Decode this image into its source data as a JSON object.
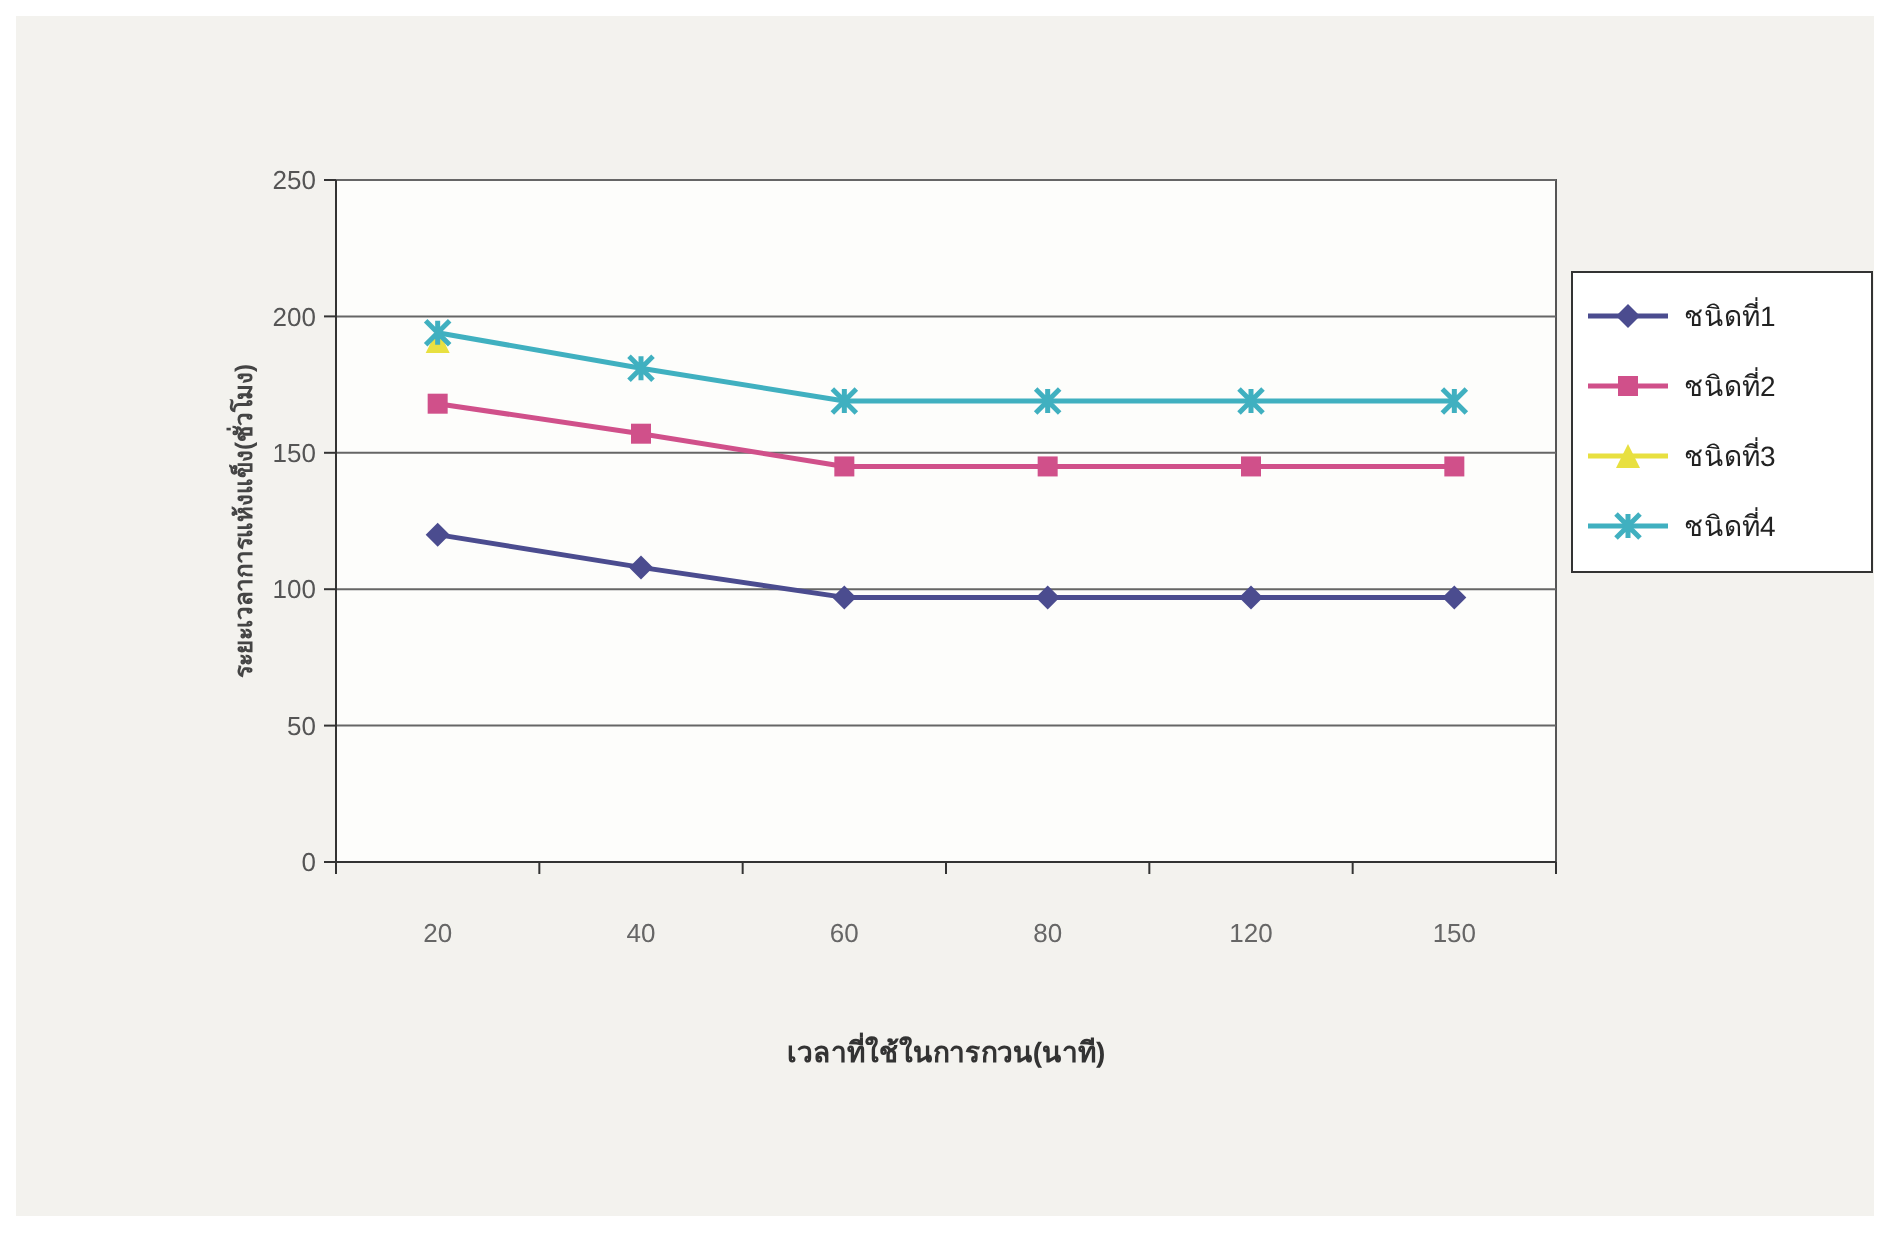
{
  "chart_data": {
    "type": "line",
    "xlabel": "เวลาที่ใช้ในการกวน(นาที)",
    "ylabel": "ระยะเวลาการแห้งแข็ง(ชั่วโมง)",
    "categories": [
      "20",
      "40",
      "60",
      "80",
      "120",
      "150"
    ],
    "series": [
      {
        "name": "ชนิดที่1",
        "color": "#4b4c8f",
        "marker": "diamond",
        "values": [
          120,
          108,
          97,
          97,
          97,
          97
        ]
      },
      {
        "name": "ชนิดที่2",
        "color": "#d0508a",
        "marker": "square",
        "values": [
          168,
          157,
          145,
          145,
          145,
          145
        ]
      },
      {
        "name": "ชนิดที่3",
        "color": "#e8e040",
        "marker": "triangle",
        "values": [
          191,
          null,
          null,
          null,
          null,
          null
        ]
      },
      {
        "name": "ชนิดที่4",
        "color": "#40b0c0",
        "marker": "cross",
        "values": [
          194,
          181,
          169,
          169,
          169,
          169
        ]
      }
    ],
    "ylim": [
      0,
      250
    ],
    "yticks": [
      0,
      50,
      100,
      150,
      200,
      250
    ],
    "grid": "y",
    "legend": "right"
  }
}
